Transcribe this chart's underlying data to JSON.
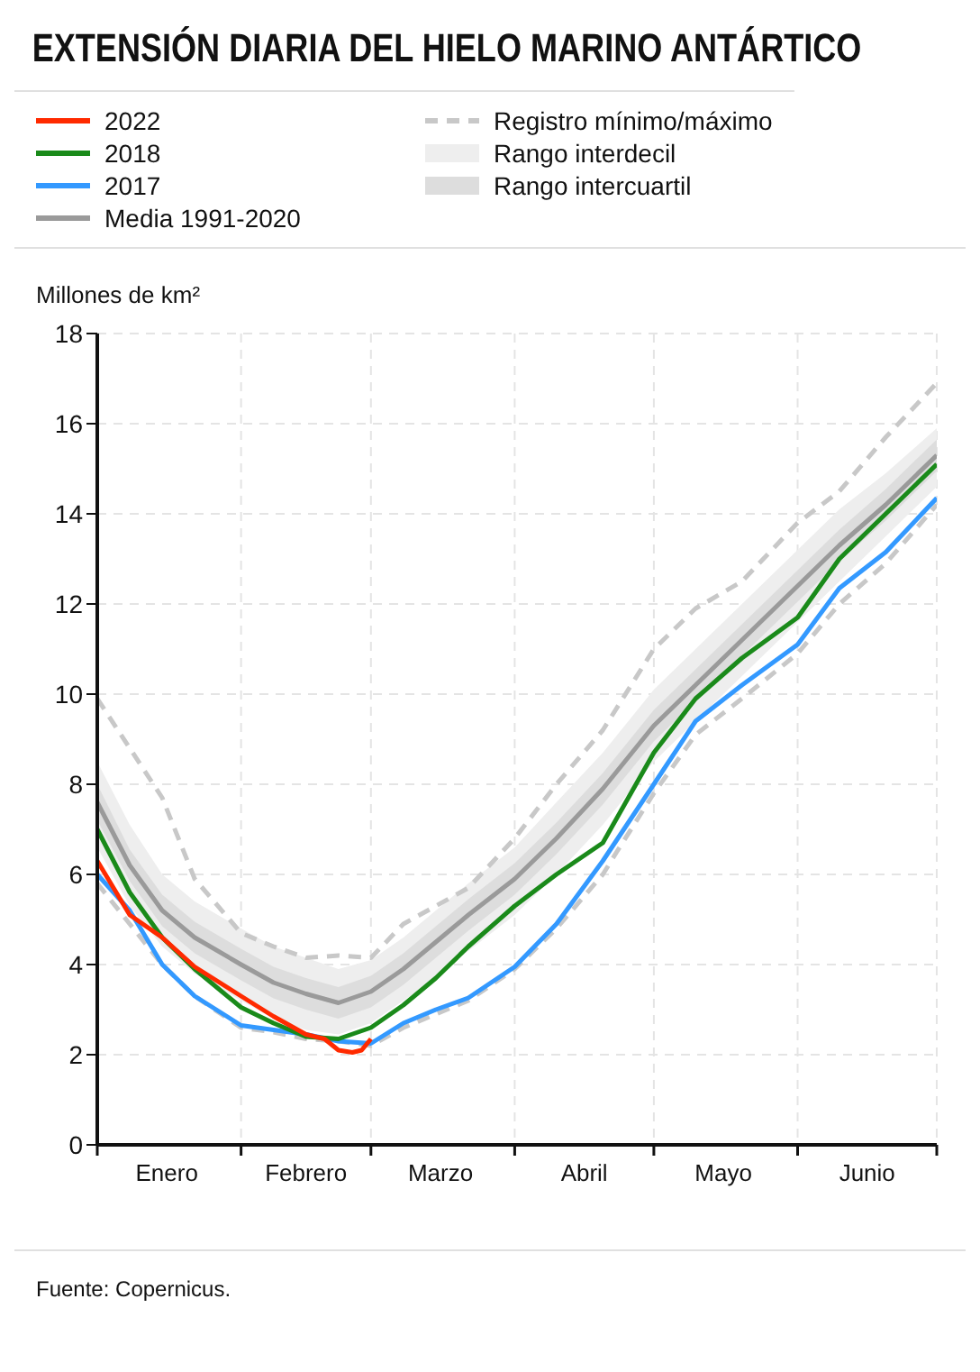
{
  "chart_data": {
    "type": "line",
    "title": "EXTENSIÓN DIARIA DEL HIELO MARINO ANTÁRTICO",
    "ylabel": "Millones de km²",
    "annotations": [
      "Fuente: Copernicus."
    ],
    "x": [
      "--01-01",
      "--01-08",
      "--01-15",
      "--01-22",
      "--02-01",
      "--02-08",
      "--02-15",
      "--02-22",
      "--03-01",
      "--03-08",
      "--03-15",
      "--03-22",
      "--04-01",
      "--04-10",
      "--04-20",
      "--05-01",
      "--05-10",
      "--05-20",
      "--06-01",
      "--06-10",
      "--06-20",
      "--07-01"
    ],
    "series": [
      {
        "name": "2022",
        "color": "#ff2a00",
        "x": [
          "--01-01",
          "--01-08",
          "--01-15",
          "--01-22",
          "--02-01",
          "--02-08",
          "--02-15",
          "--02-19",
          "--02-22",
          "--02-25",
          "--02-27",
          "--03-01"
        ],
        "values": [
          6.3,
          5.1,
          4.6,
          3.95,
          3.3,
          2.85,
          2.45,
          2.35,
          2.1,
          2.05,
          2.1,
          2.35
        ]
      },
      {
        "name": "2018",
        "color": "#1a8a1a",
        "values": [
          7.0,
          5.6,
          4.6,
          3.9,
          3.05,
          2.7,
          2.4,
          2.35,
          2.6,
          3.1,
          3.7,
          4.4,
          5.3,
          6.0,
          6.7,
          8.7,
          9.9,
          10.8,
          11.7,
          13.0,
          14.0,
          15.1
        ]
      },
      {
        "name": "2017",
        "color": "#3399ff",
        "values": [
          6.0,
          5.2,
          4.0,
          3.3,
          2.65,
          2.55,
          2.45,
          2.3,
          2.25,
          2.7,
          3.0,
          3.26,
          3.95,
          4.9,
          6.3,
          8.0,
          9.4,
          10.2,
          11.1,
          12.35,
          13.15,
          14.35
        ]
      },
      {
        "name": "Media 1991-2020",
        "color": "#9a9a9a",
        "values": [
          7.6,
          6.2,
          5.2,
          4.6,
          4.0,
          3.6,
          3.35,
          3.15,
          3.4,
          3.9,
          4.5,
          5.1,
          5.9,
          6.8,
          7.9,
          9.3,
          10.2,
          11.2,
          12.4,
          13.3,
          14.2,
          15.3
        ]
      },
      {
        "name": "Registro mínimo/máximo",
        "color": "#c8c8c8",
        "line_style": "dashed",
        "values": [
          9.9,
          8.8,
          7.7,
          5.9,
          4.7,
          4.4,
          4.15,
          4.2,
          4.15,
          4.9,
          5.3,
          5.7,
          6.8,
          8.0,
          9.2,
          11.0,
          11.9,
          12.5,
          13.8,
          14.5,
          15.7,
          16.9
        ]
      },
      {
        "color": "#c8c8c8",
        "line_style": "dashed",
        "x": [
          "--01-01",
          "--01-08",
          "--01-15",
          "--01-22",
          "--02-01",
          "--02-08",
          "--02-15",
          "--02-22",
          "--03-01",
          "--03-08",
          "--03-15",
          "--03-22",
          "--04-01",
          "--04-10",
          "--04-20",
          "--04-23",
          "--05-01",
          "--05-10",
          "--05-20",
          "--06-01",
          "--06-10",
          "--06-20",
          "--07-01"
        ],
        "values": [
          5.8,
          4.9,
          4.0,
          3.3,
          2.6,
          2.5,
          2.35,
          2.3,
          2.2,
          2.6,
          2.9,
          3.2,
          3.9,
          4.8,
          6.0,
          6.5,
          7.8,
          9.1,
          9.9,
          10.9,
          12.0,
          12.9,
          14.2
        ]
      },
      {
        "name": "Rango interdecil",
        "type": "area",
        "color": "#eeeeee",
        "values": [
          null,
          null,
          null,
          null,
          null,
          null,
          null,
          null,
          null,
          null,
          null,
          null,
          null,
          null,
          null,
          null,
          null,
          null,
          null,
          null,
          null,
          null
        ],
        "lower": [
          6.6,
          5.3,
          4.4,
          3.8,
          3.2,
          2.8,
          2.55,
          2.45,
          2.7,
          3.2,
          3.7,
          4.3,
          5.1,
          6.0,
          7.1,
          8.5,
          9.4,
          10.4,
          11.6,
          12.5,
          13.5,
          14.6
        ],
        "upper": [
          8.5,
          7.1,
          6.0,
          5.4,
          4.8,
          4.4,
          4.15,
          3.9,
          4.1,
          4.6,
          5.2,
          5.8,
          6.6,
          7.6,
          8.7,
          10.1,
          11.0,
          12.0,
          13.2,
          14.1,
          14.9,
          15.9
        ]
      },
      {
        "name": "Rango intercuartil",
        "type": "area",
        "color": "#dddddd",
        "values": [
          null,
          null,
          null,
          null,
          null,
          null,
          null,
          null,
          null,
          null,
          null,
          null,
          null,
          null,
          null,
          null,
          null,
          null,
          null,
          null,
          null,
          null
        ],
        "lower": [
          7.2,
          5.85,
          4.85,
          4.25,
          3.65,
          3.25,
          3.0,
          2.8,
          3.05,
          3.55,
          4.15,
          4.75,
          5.55,
          6.45,
          7.55,
          8.95,
          9.85,
          10.85,
          12.05,
          12.95,
          13.85,
          14.95
        ],
        "upper": [
          8.0,
          6.55,
          5.55,
          4.95,
          4.35,
          3.95,
          3.7,
          3.5,
          3.75,
          4.25,
          4.85,
          5.45,
          6.25,
          7.15,
          8.25,
          9.65,
          10.55,
          11.55,
          12.75,
          13.65,
          14.55,
          15.65
        ]
      }
    ],
    "xlim": [
      "--01-01",
      "--07-01"
    ],
    "xticks": [
      {
        "value": "--01-01",
        "label": null
      },
      {
        "value": "--01-16",
        "label": "Enero"
      },
      {
        "value": "--02-01",
        "label": null
      },
      {
        "value": "--02-15",
        "label": "Febrero"
      },
      {
        "value": "--03-01",
        "label": null
      },
      {
        "value": "--03-16",
        "label": "Marzo"
      },
      {
        "value": "--04-01",
        "label": null
      },
      {
        "value": "--04-16",
        "label": "Abril"
      },
      {
        "value": "--05-01",
        "label": null
      },
      {
        "value": "--05-16",
        "label": "Mayo"
      },
      {
        "value": "--06-01",
        "label": null
      },
      {
        "value": "--06-16",
        "label": "Junio"
      },
      {
        "value": "--07-01",
        "label": null
      }
    ],
    "ylim": [
      0,
      18
    ],
    "yticks": [
      0,
      2,
      4,
      6,
      8,
      10,
      12,
      14,
      16,
      18
    ],
    "grid": true,
    "legend": "top left",
    "line_style": "solid"
  }
}
